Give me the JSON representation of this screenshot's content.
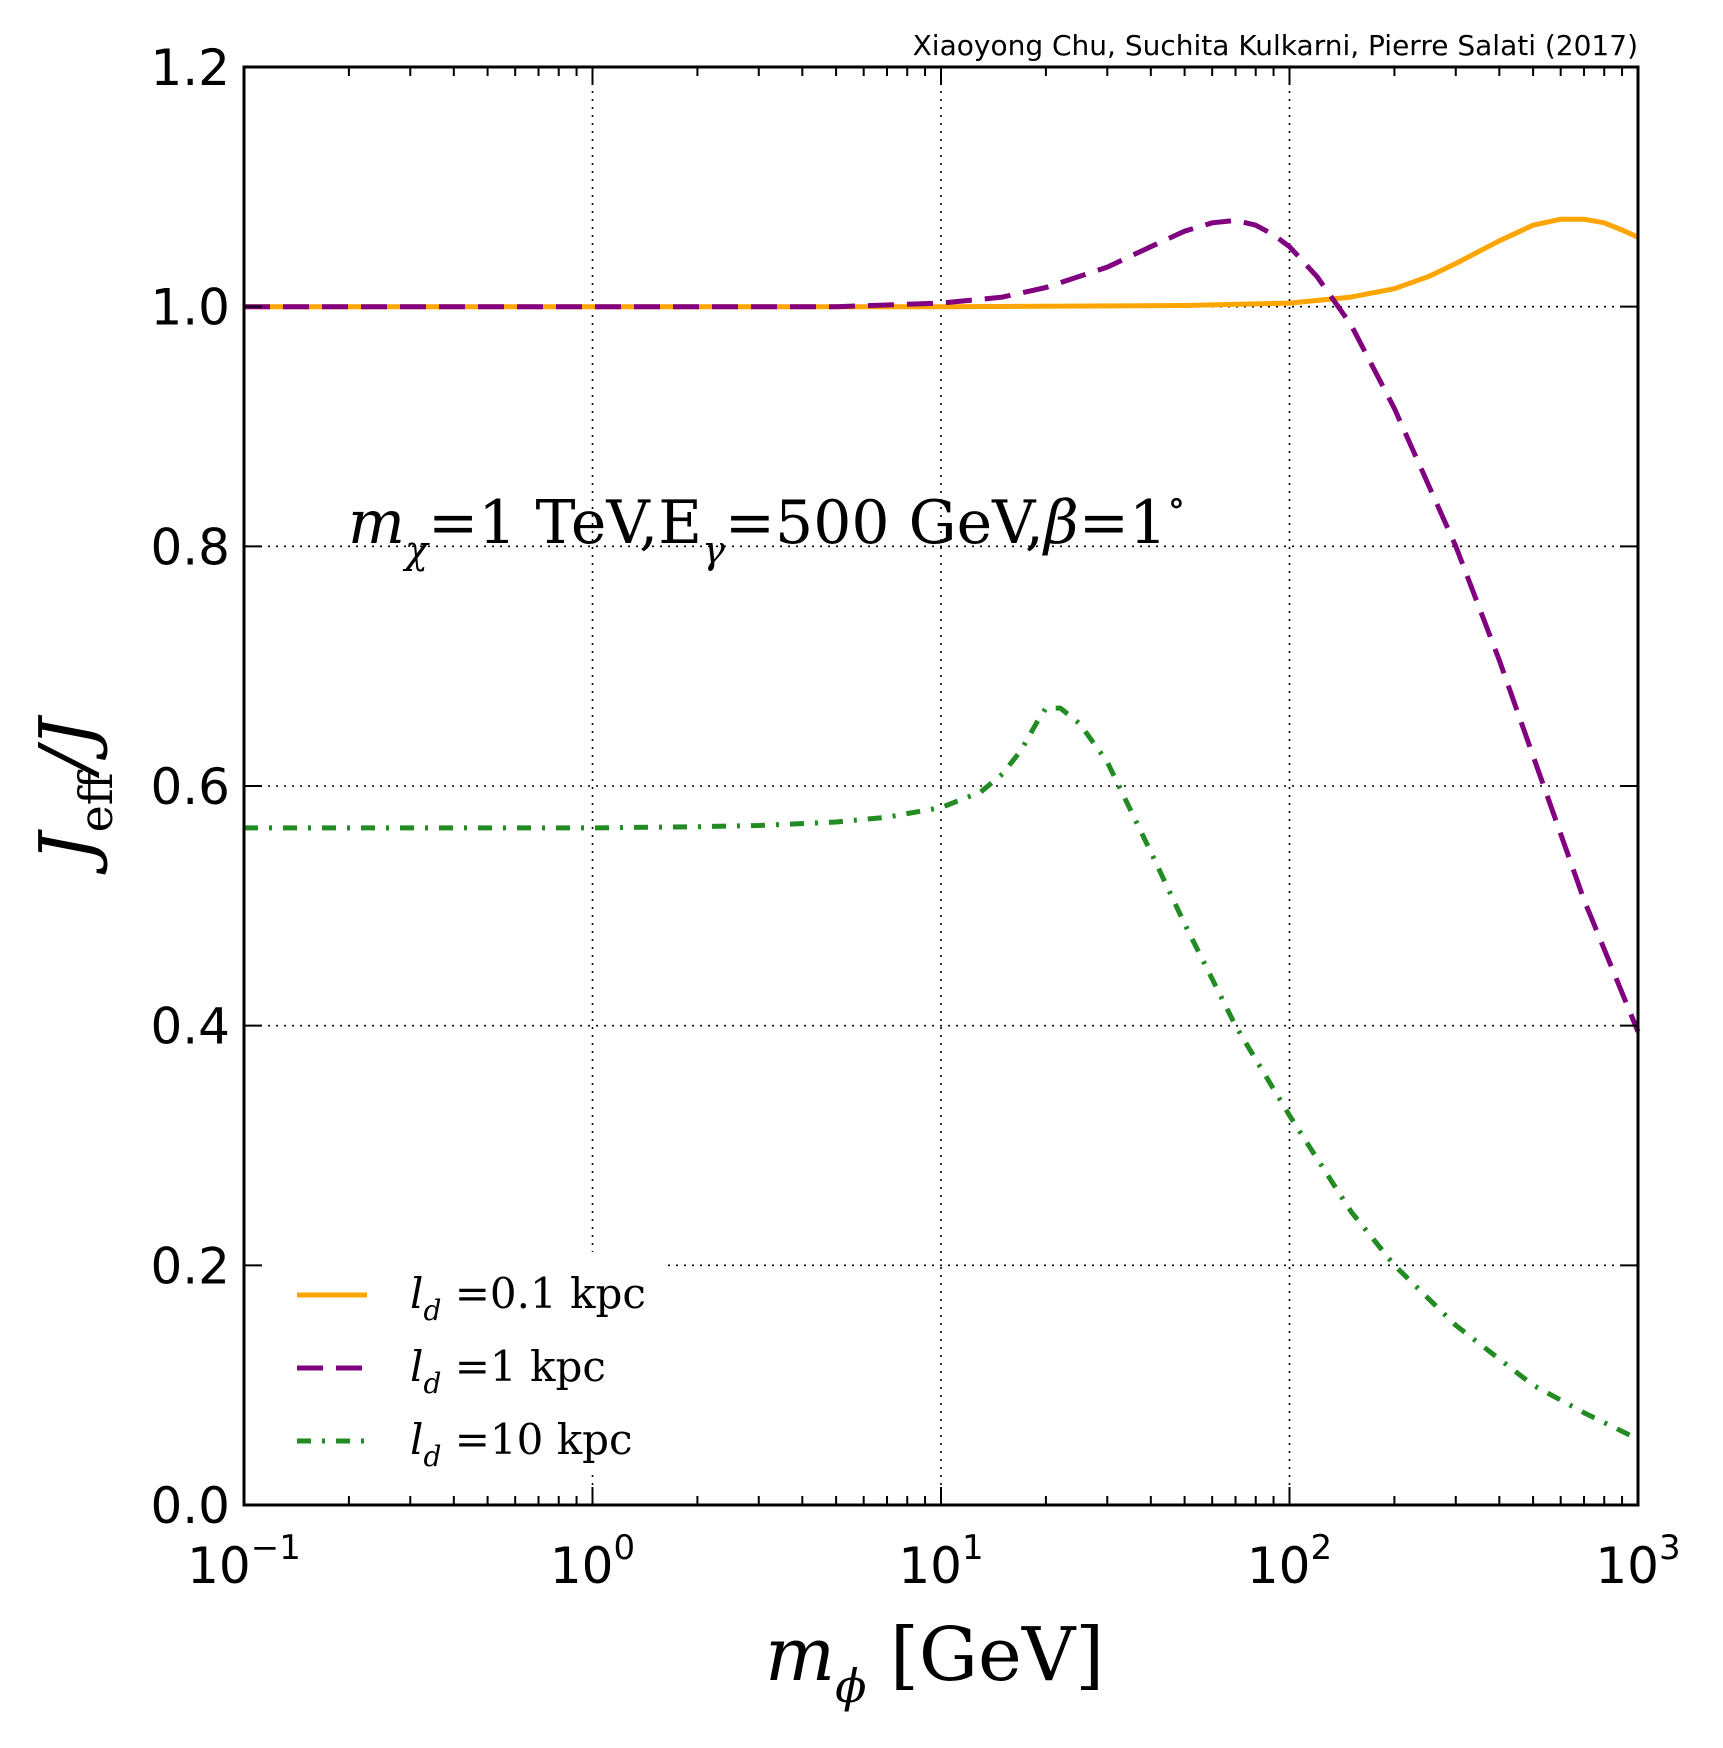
{
  "credit": "Xiaoyong Chu, Suchita Kulkarni, Pierre Salati (2017)",
  "colors": {
    "orange": "#FFA500",
    "purple": "#800080",
    "green": "#228B22"
  },
  "annotation": {
    "m": "m",
    "chi": "χ",
    "eq1": "=1 TeV,",
    "E": "E",
    "gamma": "γ",
    "eq2": "=500 GeV,",
    "beta": "β",
    "eq3": "=1",
    "deg": "∘"
  },
  "chart_data": {
    "type": "line",
    "title": "",
    "xscale": "log",
    "xlim": [
      0.1,
      1000
    ],
    "ylim": [
      0.0,
      1.2
    ],
    "xlabel": {
      "var": "m",
      "sub": "ϕ",
      "unit": " [GeV]"
    },
    "ylabel": {
      "var": "J",
      "sub": "eff",
      "rest": "/J"
    },
    "xticks": [
      {
        "value": 0.1,
        "base": "10",
        "exp": "−1"
      },
      {
        "value": 1,
        "base": "10",
        "exp": "0"
      },
      {
        "value": 10,
        "base": "10",
        "exp": "1"
      },
      {
        "value": 100,
        "base": "10",
        "exp": "2"
      },
      {
        "value": 1000,
        "base": "10",
        "exp": "3"
      }
    ],
    "yticks": [
      "0.0",
      "0.2",
      "0.4",
      "0.6",
      "0.8",
      "1.0",
      "1.2"
    ],
    "grid": true,
    "legend_position": "lower-left",
    "series": [
      {
        "name": "0.1 kpc",
        "legend_prefix": "l",
        "legend_sub": "d",
        "legend_text": " =0.1 kpc",
        "color": "#FFA500",
        "style": "solid",
        "x": [
          0.1,
          1,
          10,
          50,
          100,
          150,
          200,
          250,
          300,
          400,
          500,
          600,
          700,
          800,
          900,
          1000
        ],
        "y": [
          1.0,
          1.0,
          1.0,
          1.001,
          1.003,
          1.008,
          1.015,
          1.025,
          1.036,
          1.055,
          1.068,
          1.073,
          1.073,
          1.07,
          1.064,
          1.058
        ]
      },
      {
        "name": "1 kpc",
        "legend_prefix": "l",
        "legend_sub": "d",
        "legend_text": " =1 kpc",
        "color": "#800080",
        "style": "dashed",
        "x": [
          0.1,
          1,
          5,
          10,
          15,
          20,
          30,
          40,
          50,
          60,
          70,
          80,
          90,
          100,
          120,
          150,
          200,
          300,
          400,
          500,
          700,
          1000
        ],
        "y": [
          1.0,
          1.0,
          1.0,
          1.003,
          1.008,
          1.016,
          1.033,
          1.05,
          1.063,
          1.07,
          1.072,
          1.068,
          1.06,
          1.05,
          1.025,
          0.985,
          0.915,
          0.8,
          0.705,
          0.625,
          0.505,
          0.395
        ]
      },
      {
        "name": "10 kpc",
        "legend_prefix": "l",
        "legend_sub": "d",
        "legend_text": " =10 kpc",
        "color": "#228B22",
        "style": "dashdot",
        "x": [
          0.1,
          1,
          2,
          3,
          5,
          7,
          10,
          13,
          15,
          17,
          19,
          20,
          22,
          25,
          30,
          40,
          50,
          70,
          100,
          150,
          200,
          300,
          500,
          700,
          1000
        ],
        "y": [
          0.565,
          0.565,
          0.566,
          0.567,
          0.57,
          0.574,
          0.582,
          0.595,
          0.61,
          0.63,
          0.655,
          0.665,
          0.665,
          0.652,
          0.62,
          0.545,
          0.485,
          0.4,
          0.325,
          0.245,
          0.2,
          0.15,
          0.1,
          0.077,
          0.055
        ]
      }
    ]
  }
}
